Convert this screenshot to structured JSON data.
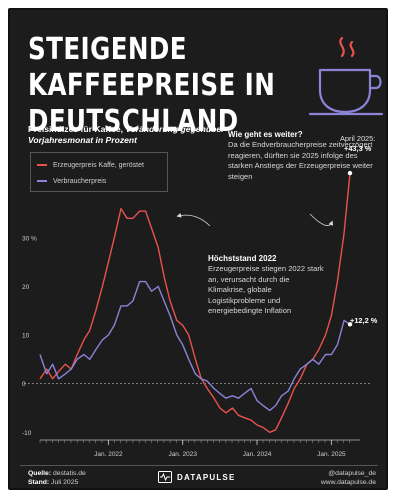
{
  "header": {
    "title": "STEIGENDE KAFFEEPREISE IN DEUTSCHLAND",
    "subtitle_bold": "Preisindizes für Kaffee,",
    "subtitle_italic": "Veränderung gegenüber Vorjahresmonat in Prozent",
    "icon": "coffee-cup-icon"
  },
  "legend": {
    "items": [
      {
        "label": "Erzeugerpreis Kaffe, geröstet",
        "color": "#e8524d"
      },
      {
        "label": "Verbraucherpreis",
        "color": "#8a83d6"
      }
    ]
  },
  "annotations": {
    "outlook_heading": "Wie geht es weiter?",
    "outlook_text": "Da die Endverbraucherpreise zeitverzögert reagieren, dürften sie 2025 infolge des starken Anstiegs der Erzeugerpreise weiter steigen",
    "peak_heading": "Höchststand 2022",
    "peak_text": "Erzeugerpreise stiegen 2022 stark an, verursacht durch die Klimakrise, globale Logistikprobleme und energiebedingte Inflation",
    "april_label": "April 2025:",
    "producer_end_label": "+43,3 %",
    "consumer_end_label": "+12,2 %"
  },
  "chart_data": {
    "type": "line",
    "title": "",
    "xlabel": "",
    "ylabel": "",
    "x_range": [
      "2021-02",
      "2025-04"
    ],
    "ylim": [
      -12,
      46
    ],
    "ytick_labels": [
      "30 %",
      "20",
      "10",
      "0",
      "-10"
    ],
    "ytick_values": [
      30,
      20,
      10,
      0,
      -10
    ],
    "xtick_labels": [
      "Jan. 2022",
      "Jan. 2023",
      "Jan. 2024",
      "Jan. 2025"
    ],
    "xtick_values": [
      2022.0,
      2023.0,
      2024.0,
      2025.0
    ],
    "baseline_dashed": true,
    "series": [
      {
        "name": "Erzeugerpreis Kaffe, geröstet",
        "color": "#e8524d",
        "points": [
          [
            2021.08,
            1
          ],
          [
            2021.17,
            3
          ],
          [
            2021.25,
            1
          ],
          [
            2021.33,
            2.5
          ],
          [
            2021.42,
            4
          ],
          [
            2021.5,
            3
          ],
          [
            2021.58,
            6
          ],
          [
            2021.67,
            9
          ],
          [
            2021.75,
            11
          ],
          [
            2021.83,
            15
          ],
          [
            2021.92,
            20
          ],
          [
            2022.0,
            25
          ],
          [
            2022.08,
            30
          ],
          [
            2022.17,
            36
          ],
          [
            2022.25,
            34
          ],
          [
            2022.33,
            34
          ],
          [
            2022.42,
            35.5
          ],
          [
            2022.5,
            35.5
          ],
          [
            2022.58,
            32
          ],
          [
            2022.67,
            28
          ],
          [
            2022.75,
            22
          ],
          [
            2022.83,
            17
          ],
          [
            2022.92,
            13
          ],
          [
            2023.0,
            12
          ],
          [
            2023.08,
            10
          ],
          [
            2023.17,
            5
          ],
          [
            2023.25,
            1
          ],
          [
            2023.33,
            -1
          ],
          [
            2023.42,
            -3
          ],
          [
            2023.5,
            -5
          ],
          [
            2023.58,
            -6
          ],
          [
            2023.67,
            -5
          ],
          [
            2023.75,
            -6.5
          ],
          [
            2023.83,
            -7
          ],
          [
            2023.92,
            -7.5
          ],
          [
            2024.0,
            -8.5
          ],
          [
            2024.08,
            -9
          ],
          [
            2024.17,
            -10
          ],
          [
            2024.25,
            -9.5
          ],
          [
            2024.33,
            -7
          ],
          [
            2024.42,
            -4
          ],
          [
            2024.5,
            -1
          ],
          [
            2024.58,
            1
          ],
          [
            2024.67,
            4
          ],
          [
            2024.75,
            5
          ],
          [
            2024.83,
            7
          ],
          [
            2024.92,
            10
          ],
          [
            2025.0,
            14
          ],
          [
            2025.08,
            21
          ],
          [
            2025.17,
            31
          ],
          [
            2025.25,
            43.3
          ]
        ]
      },
      {
        "name": "Verbraucherpreis",
        "color": "#8a83d6",
        "points": [
          [
            2021.08,
            6
          ],
          [
            2021.17,
            2
          ],
          [
            2021.25,
            4
          ],
          [
            2021.33,
            1
          ],
          [
            2021.42,
            2
          ],
          [
            2021.5,
            3
          ],
          [
            2021.58,
            5
          ],
          [
            2021.67,
            6
          ],
          [
            2021.75,
            5
          ],
          [
            2021.83,
            7
          ],
          [
            2021.92,
            9
          ],
          [
            2022.0,
            10
          ],
          [
            2022.08,
            12
          ],
          [
            2022.17,
            16
          ],
          [
            2022.25,
            16
          ],
          [
            2022.33,
            17
          ],
          [
            2022.42,
            21
          ],
          [
            2022.5,
            21
          ],
          [
            2022.58,
            19
          ],
          [
            2022.67,
            20
          ],
          [
            2022.75,
            17
          ],
          [
            2022.83,
            14
          ],
          [
            2022.92,
            10
          ],
          [
            2023.0,
            8
          ],
          [
            2023.08,
            5
          ],
          [
            2023.17,
            2
          ],
          [
            2023.25,
            1
          ],
          [
            2023.33,
            0.5
          ],
          [
            2023.42,
            -1
          ],
          [
            2023.5,
            -2
          ],
          [
            2023.58,
            -3
          ],
          [
            2023.67,
            -2.5
          ],
          [
            2023.75,
            -3
          ],
          [
            2023.83,
            -2
          ],
          [
            2023.92,
            -1
          ],
          [
            2024.0,
            -3.5
          ],
          [
            2024.08,
            -4.5
          ],
          [
            2024.17,
            -5.5
          ],
          [
            2024.25,
            -4.5
          ],
          [
            2024.33,
            -2.5
          ],
          [
            2024.42,
            -1.5
          ],
          [
            2024.5,
            1
          ],
          [
            2024.58,
            3
          ],
          [
            2024.67,
            4
          ],
          [
            2024.75,
            5
          ],
          [
            2024.83,
            4
          ],
          [
            2024.92,
            6
          ],
          [
            2025.0,
            6
          ],
          [
            2025.08,
            8
          ],
          [
            2025.17,
            13
          ],
          [
            2025.25,
            12.2
          ]
        ]
      }
    ]
  },
  "footer": {
    "source_label": "Quelle:",
    "source_value": "destatis.de",
    "date_label": "Stand:",
    "date_value": "Juli 2025",
    "brand": "DATAPULSE",
    "handle": "@datapulse_de",
    "website": "www.datapulse.de"
  }
}
